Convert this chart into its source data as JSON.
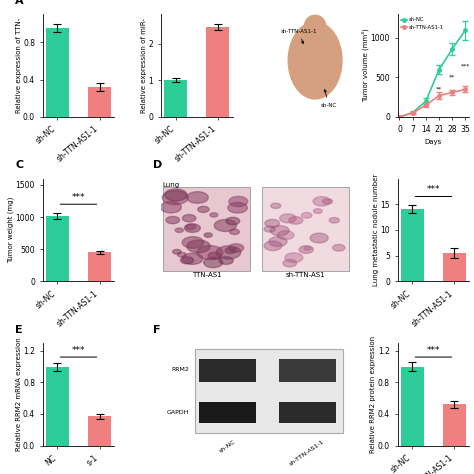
{
  "chart_A_TTN": {
    "categories": [
      "sh-NC",
      "sh-TTN-AS1-1"
    ],
    "values": [
      0.95,
      0.32
    ],
    "errors": [
      0.04,
      0.04
    ],
    "colors": [
      "#2ecc99",
      "#f08080"
    ],
    "ylabel": "Relative expression of TTN-",
    "ylim": [
      0,
      1.1
    ],
    "yticks": [
      0.0,
      0.4,
      0.8
    ]
  },
  "chart_A_miR": {
    "categories": [
      "sh-NC",
      "sh-TTN-AS1-1"
    ],
    "values": [
      1.0,
      2.45
    ],
    "errors": [
      0.05,
      0.07
    ],
    "colors": [
      "#2ecc99",
      "#f08080"
    ],
    "ylabel": "Relative expression of miR-",
    "ylim": [
      0,
      2.8
    ],
    "yticks": [
      0,
      1,
      2
    ]
  },
  "chart_B_tumor_volume": {
    "days": [
      0,
      7,
      14,
      21,
      28,
      35
    ],
    "sh_NC_values": [
      0,
      55,
      200,
      600,
      860,
      1100
    ],
    "sh_NC_errors": [
      0,
      15,
      35,
      60,
      80,
      120
    ],
    "sh_TTN_values": [
      0,
      50,
      150,
      270,
      310,
      350
    ],
    "sh_TTN_errors": [
      0,
      12,
      25,
      40,
      35,
      40
    ],
    "color_NC": "#2ecc99",
    "color_TTN": "#f08080",
    "ylabel": "Tumor volume (mm³)",
    "xlabel": "Days",
    "ylim": [
      0,
      1300
    ],
    "yticks": [
      0,
      500,
      1000
    ],
    "significance": [
      "**",
      "**",
      "***"
    ],
    "sig_days": [
      21,
      28,
      35
    ],
    "legend_NC": "sh-NC",
    "legend_TTN": "sh-TTN-AS1-1"
  },
  "chart_C": {
    "categories": [
      "sh-NC",
      "sh-TTN-AS1-1"
    ],
    "values": [
      1020,
      450
    ],
    "errors": [
      50,
      25
    ],
    "colors": [
      "#2ecc99",
      "#f08080"
    ],
    "ylabel": "Tumor weight (mg)",
    "ylim": [
      0,
      1600
    ],
    "yticks": [
      0,
      500,
      1000,
      1500
    ],
    "significance": "***"
  },
  "chart_D_lung": {
    "categories": [
      "sh-NC",
      "sh-TTN-AS1-1"
    ],
    "values": [
      14,
      5.5
    ],
    "errors": [
      0.8,
      1.0
    ],
    "colors": [
      "#2ecc99",
      "#f08080"
    ],
    "ylabel": "Lung metastatic nodule number",
    "ylim": [
      0,
      20
    ],
    "yticks": [
      0,
      5,
      10,
      15
    ],
    "significance": "***"
  },
  "chart_E": {
    "categories": [
      "NC",
      "s-1"
    ],
    "values": [
      1.0,
      0.37
    ],
    "errors": [
      0.05,
      0.03
    ],
    "colors": [
      "#2ecc99",
      "#f08080"
    ],
    "ylabel": "Relative RRM2 mRNA expression",
    "ylim": [
      0,
      1.3
    ],
    "yticks": [
      0.0,
      0.4,
      0.8,
      1.2
    ],
    "significance": "***"
  },
  "chart_F": {
    "categories": [
      "sh-NC",
      "sh-TTN-AS1-1"
    ],
    "values": [
      1.0,
      0.52
    ],
    "errors": [
      0.06,
      0.04
    ],
    "colors": [
      "#2ecc99",
      "#f08080"
    ],
    "ylabel": "Relative RRM2 protein expression",
    "ylim": [
      0,
      1.3
    ],
    "yticks": [
      0.0,
      0.4,
      0.8,
      1.2
    ],
    "significance": "***"
  },
  "background": "#ffffff",
  "tick_fontsize": 5.5,
  "axis_fontsize": 5.0,
  "sig_fontsize": 6.5,
  "panel_label_fontsize": 8
}
